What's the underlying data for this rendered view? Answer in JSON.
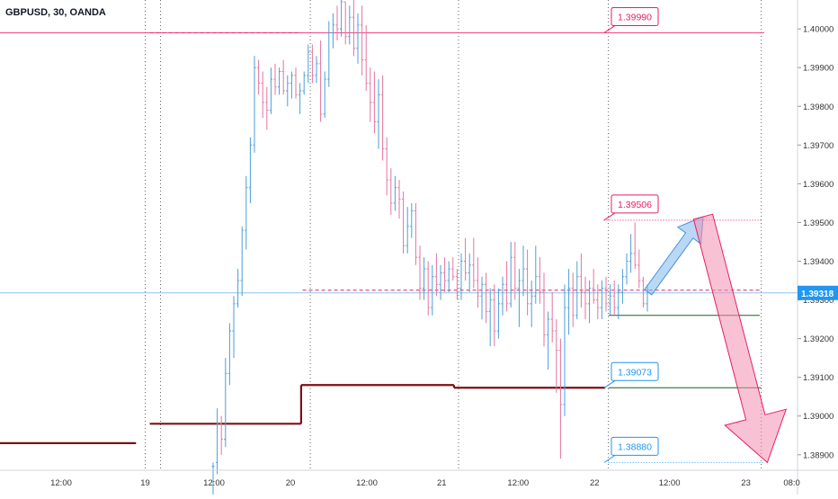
{
  "symbol_title": "GBPUSD, 30, OANDA",
  "colors": {
    "up": "#4a9fd8",
    "down": "#e6739f",
    "accent_red": "#e91e63",
    "accent_blue": "#2196f3",
    "support": "#7b1113",
    "green_line": "#1b5e20",
    "axis_text": "#333333",
    "grid": "#666666"
  },
  "chart_data": {
    "type": "candlestick",
    "ylim": [
      1.3886,
      1.4007
    ],
    "y_ticks": [
      1.4,
      1.399,
      1.398,
      1.397,
      1.396,
      1.395,
      1.394,
      1.393,
      1.392,
      1.391,
      1.39,
      1.389
    ],
    "y_tick_labels": [
      "1.40000",
      "1.39900",
      "1.39800",
      "1.39700",
      "1.39600",
      "1.39500",
      "1.39400",
      "1.39300",
      "1.39200",
      "1.39100",
      "1.39000",
      "1.38900"
    ],
    "x_ticks": [
      {
        "label": "12:00",
        "t": 0.4
      },
      {
        "label": "19",
        "t": 0.95
      },
      {
        "label": "12:00",
        "t": 1.4
      },
      {
        "label": "20",
        "t": 1.9
      },
      {
        "label": "12:00",
        "t": 2.4
      },
      {
        "label": "21",
        "t": 2.89
      },
      {
        "label": "12:00",
        "t": 3.39
      },
      {
        "label": "22",
        "t": 3.89
      },
      {
        "label": "12:00",
        "t": 4.38
      },
      {
        "label": "23",
        "t": 4.88
      },
      {
        "label": "08:0",
        "t": 5.18
      }
    ],
    "day_separators": [
      0.95,
      1.05,
      2.03,
      3.0,
      3.98,
      4.98
    ],
    "last_price": "1.39318",
    "last_price_value": 1.39318,
    "price_labels": [
      {
        "text": "1.39990",
        "value": 1.3999,
        "color": "red"
      },
      {
        "text": "1.39506",
        "value": 1.39506,
        "color": "red"
      },
      {
        "text": "1.39073",
        "value": 1.39073,
        "color": "blue"
      },
      {
        "text": "1.38880",
        "value": 1.3888,
        "color": "blue"
      }
    ],
    "horizontal_levels": [
      {
        "value": 1.3999,
        "t1": 0.0,
        "t2": 5.0,
        "style": "solid",
        "color": "red"
      },
      {
        "value": 1.3999,
        "t1": 0.98,
        "t2": 1.97,
        "style": "dashed",
        "color": "red"
      },
      {
        "value": 1.39506,
        "t1": 3.95,
        "t2": 4.98,
        "style": "dotted",
        "color": "red"
      },
      {
        "value": 1.39325,
        "t1": 1.98,
        "t2": 4.97,
        "style": "dashed",
        "color": "red"
      },
      {
        "value": 1.39073,
        "t1": 3.98,
        "t2": 4.98,
        "style": "solid",
        "color": "green"
      },
      {
        "value": 1.3926,
        "t1": 3.98,
        "t2": 4.97,
        "style": "solid",
        "color": "green"
      },
      {
        "value": 1.3888,
        "t1": 3.98,
        "t2": 5.0,
        "style": "dotted",
        "color": "blue"
      }
    ],
    "support_steps": [
      {
        "value": 1.3893,
        "t1": 0.0,
        "t2": 0.89
      },
      {
        "value": 1.3898,
        "t1": 0.98,
        "t2": 1.97
      },
      {
        "value": 1.3908,
        "t1": 1.97,
        "t2": 2.97
      },
      {
        "value": 1.39073,
        "t1": 2.97,
        "t2": 3.96
      }
    ],
    "projection": {
      "up": {
        "t1": 4.24,
        "v1": 1.3932,
        "t2": 4.6,
        "v2": 1.39515
      },
      "down": {
        "t1": 4.6,
        "v1": 1.39515,
        "t2": 5.02,
        "v2": 1.3888
      }
    },
    "candles": [
      [
        1.3887,
        1.3888,
        1.3874,
        1.3887
      ],
      [
        1.3888,
        1.3902,
        1.3885,
        1.3898
      ],
      [
        1.3898,
        1.39,
        1.389,
        1.3894
      ],
      [
        1.3894,
        1.3915,
        1.3892,
        1.3911
      ],
      [
        1.3911,
        1.3924,
        1.3908,
        1.3922
      ],
      [
        1.3922,
        1.3931,
        1.3915,
        1.3929
      ],
      [
        1.3929,
        1.3938,
        1.3928,
        1.3935
      ],
      [
        1.3935,
        1.3949,
        1.3931,
        1.3948
      ],
      [
        1.3948,
        1.3962,
        1.3943,
        1.3959
      ],
      [
        1.3959,
        1.3972,
        1.3955,
        1.397
      ],
      [
        1.397,
        1.3993,
        1.3968,
        1.399
      ],
      [
        1.399,
        1.3992,
        1.3983,
        1.3986
      ],
      [
        1.3986,
        1.3989,
        1.3977,
        1.3981
      ],
      [
        1.3981,
        1.3985,
        1.3974,
        1.3979
      ],
      [
        1.3979,
        1.399,
        1.3978,
        1.3987
      ],
      [
        1.3987,
        1.3991,
        1.3983,
        1.3985
      ],
      [
        1.3985,
        1.399,
        1.3983,
        1.3989
      ],
      [
        1.3989,
        1.3992,
        1.3983,
        1.3984
      ],
      [
        1.3984,
        1.3988,
        1.398,
        1.3986
      ],
      [
        1.3986,
        1.3989,
        1.3982,
        1.3988
      ],
      [
        1.3988,
        1.399,
        1.3982,
        1.3983
      ],
      [
        1.3983,
        1.3986,
        1.3978,
        1.3984
      ],
      [
        1.3984,
        1.3989,
        1.3983,
        1.3988
      ],
      [
        1.3988,
        1.3996,
        1.3986,
        1.3994
      ],
      [
        1.3994,
        1.3996,
        1.3986,
        1.3988
      ],
      [
        1.3988,
        1.3993,
        1.3986,
        1.3991
      ],
      [
        1.3991,
        1.3997,
        1.3976,
        1.3978
      ],
      [
        1.3978,
        1.3989,
        1.3977,
        1.3987
      ],
      [
        1.3987,
        1.4002,
        1.3985,
        1.3999
      ],
      [
        1.3999,
        1.4004,
        1.3995,
        1.4001
      ],
      [
        1.4001,
        1.4006,
        1.3997,
        1.4
      ],
      [
        1.4,
        1.4009,
        1.3998,
        1.4007
      ],
      [
        1.4007,
        1.4007,
        1.3996,
        1.3998
      ],
      [
        1.3998,
        1.4006,
        1.3996,
        1.4003
      ],
      [
        1.4003,
        1.401,
        1.3993,
        1.3995
      ],
      [
        1.3995,
        1.4004,
        1.3991,
        1.4001
      ],
      [
        1.4001,
        1.4006,
        1.3988,
        1.3992
      ],
      [
        1.3992,
        1.4001,
        1.3984,
        1.3986
      ],
      [
        1.3986,
        1.399,
        1.3976,
        1.3981
      ],
      [
        1.3981,
        1.3989,
        1.3973,
        1.3976
      ],
      [
        1.3976,
        1.3987,
        1.3969,
        1.3983
      ],
      [
        1.3983,
        1.3988,
        1.3966,
        1.3969
      ],
      [
        1.3969,
        1.3972,
        1.3957,
        1.3961
      ],
      [
        1.3961,
        1.3964,
        1.3952,
        1.3955
      ],
      [
        1.3955,
        1.3962,
        1.3953,
        1.3959
      ],
      [
        1.3959,
        1.3961,
        1.3951,
        1.3956
      ],
      [
        1.3956,
        1.3958,
        1.3942,
        1.3944
      ],
      [
        1.3944,
        1.3954,
        1.3942,
        1.3949
      ],
      [
        1.3949,
        1.3955,
        1.3946,
        1.3953
      ],
      [
        1.3953,
        1.3955,
        1.3939,
        1.3941
      ],
      [
        1.3941,
        1.3944,
        1.393,
        1.3933
      ],
      [
        1.3933,
        1.3941,
        1.393,
        1.3938
      ],
      [
        1.3938,
        1.394,
        1.3926,
        1.3928
      ],
      [
        1.3928,
        1.3939,
        1.3926,
        1.3936
      ],
      [
        1.3936,
        1.3942,
        1.3931,
        1.3934
      ],
      [
        1.3934,
        1.3939,
        1.393,
        1.3937
      ],
      [
        1.3937,
        1.3941,
        1.3932,
        1.3935
      ],
      [
        1.3935,
        1.394,
        1.3932,
        1.3938
      ],
      [
        1.3938,
        1.3941,
        1.3935,
        1.3936
      ],
      [
        1.3936,
        1.3938,
        1.393,
        1.3933
      ],
      [
        1.3933,
        1.3942,
        1.393,
        1.394
      ],
      [
        1.394,
        1.3946,
        1.3935,
        1.3937
      ],
      [
        1.3937,
        1.3942,
        1.3932,
        1.3939
      ],
      [
        1.3939,
        1.3946,
        1.3933,
        1.3935
      ],
      [
        1.3935,
        1.3941,
        1.3928,
        1.3931
      ],
      [
        1.3931,
        1.3936,
        1.3925,
        1.3934
      ],
      [
        1.3934,
        1.3937,
        1.3924,
        1.3927
      ],
      [
        1.3927,
        1.3933,
        1.3918,
        1.393
      ],
      [
        1.393,
        1.3934,
        1.3918,
        1.3922
      ],
      [
        1.3922,
        1.3933,
        1.392,
        1.3929
      ],
      [
        1.3929,
        1.3936,
        1.3926,
        1.3934
      ],
      [
        1.3934,
        1.394,
        1.3927,
        1.3929
      ],
      [
        1.3929,
        1.3945,
        1.3928,
        1.3941
      ],
      [
        1.3941,
        1.3945,
        1.393,
        1.3933
      ],
      [
        1.3933,
        1.3938,
        1.3923,
        1.3935
      ],
      [
        1.3935,
        1.3944,
        1.3931,
        1.3938
      ],
      [
        1.3938,
        1.3943,
        1.3926,
        1.3929
      ],
      [
        1.3929,
        1.3935,
        1.3923,
        1.3931
      ],
      [
        1.3931,
        1.3944,
        1.3929,
        1.3936
      ],
      [
        1.3936,
        1.3941,
        1.3929,
        1.3932
      ],
      [
        1.3932,
        1.3937,
        1.3918,
        1.3921
      ],
      [
        1.3921,
        1.3927,
        1.3912,
        1.3925
      ],
      [
        1.3925,
        1.3932,
        1.3919,
        1.3922
      ],
      [
        1.3922,
        1.3925,
        1.3906,
        1.3917
      ],
      [
        1.3917,
        1.392,
        1.3889,
        1.3903
      ],
      [
        1.3903,
        1.3934,
        1.39,
        1.3928
      ],
      [
        1.3928,
        1.3938,
        1.3921,
        1.3933
      ],
      [
        1.3933,
        1.3937,
        1.3923,
        1.3926
      ],
      [
        1.3926,
        1.394,
        1.3925,
        1.3936
      ],
      [
        1.3936,
        1.3942,
        1.3928,
        1.3932
      ],
      [
        1.3932,
        1.3936,
        1.3925,
        1.3929
      ],
      [
        1.3929,
        1.3935,
        1.3924,
        1.3933
      ],
      [
        1.3933,
        1.3938,
        1.3929,
        1.393
      ],
      [
        1.393,
        1.3934,
        1.3925,
        1.3928
      ],
      [
        1.3928,
        1.3935,
        1.3925,
        1.3933
      ],
      [
        1.3933,
        1.3936,
        1.3927,
        1.3929
      ],
      [
        1.3929,
        1.3934,
        1.3926,
        1.3931
      ],
      [
        1.3931,
        1.3935,
        1.3926,
        1.3928
      ],
      [
        1.3928,
        1.3934,
        1.3925,
        1.3932
      ],
      [
        1.3932,
        1.3938,
        1.3929,
        1.3936
      ],
      [
        1.3936,
        1.3942,
        1.3934,
        1.394
      ],
      [
        1.394,
        1.3947,
        1.3937,
        1.3942
      ],
      [
        1.3942,
        1.395,
        1.3938,
        1.3939
      ],
      [
        1.3939,
        1.3943,
        1.3933,
        1.3935
      ],
      [
        1.3935,
        1.3936,
        1.3928,
        1.3929
      ],
      [
        1.3929,
        1.3934,
        1.3927,
        1.3932
      ]
    ]
  }
}
